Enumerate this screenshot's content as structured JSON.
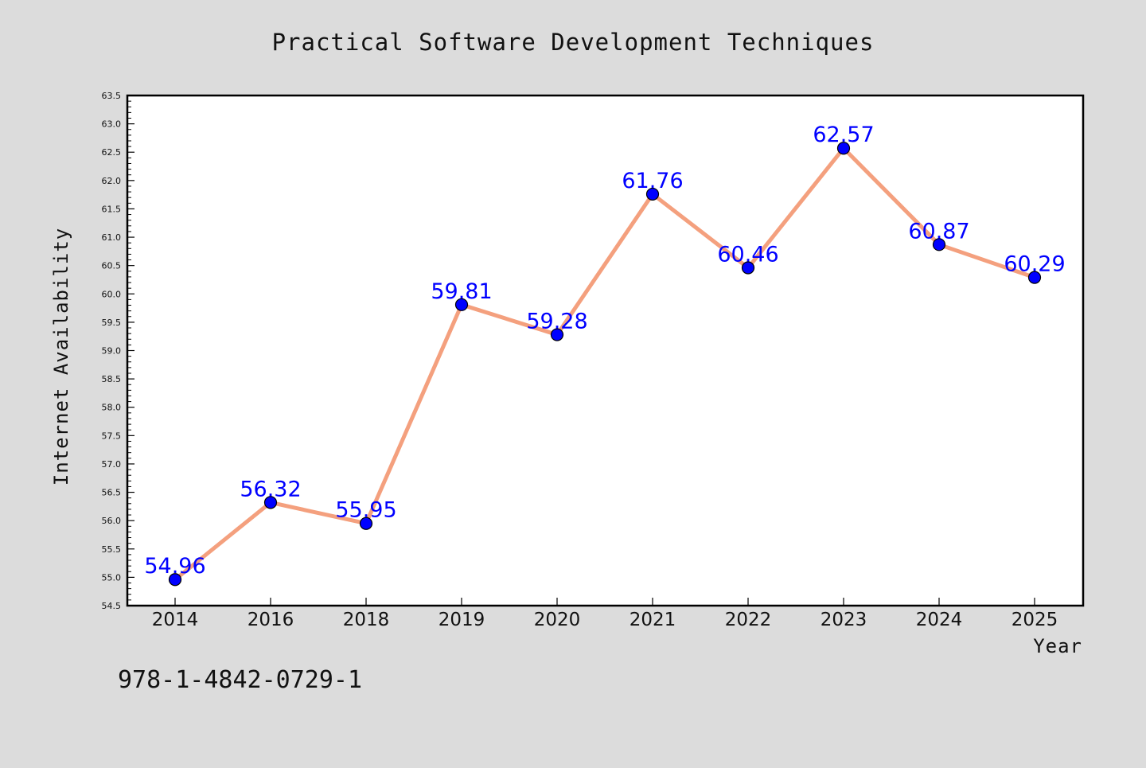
{
  "chart_data": {
    "type": "line",
    "title": "Practical Software Development Techniques",
    "xlabel": "Year",
    "ylabel": "Internet Availability",
    "categories": [
      "2014",
      "2016",
      "2018",
      "2019",
      "2020",
      "2021",
      "2022",
      "2023",
      "2024",
      "2025"
    ],
    "series": [
      {
        "values": [
          54.96,
          56.32,
          55.95,
          59.81,
          59.28,
          61.76,
          60.46,
          62.57,
          60.87,
          60.29
        ]
      }
    ],
    "data_labels": [
      "54.96",
      "56.32",
      "55.95",
      "59.81",
      "59.28",
      "61.76",
      "60.46",
      "62.57",
      "60.87",
      "60.29"
    ],
    "ylim": [
      54.5,
      63.5
    ],
    "yticks": [
      "54.5",
      "55.0",
      "55.5",
      "56.0",
      "56.5",
      "57.0",
      "57.5",
      "58.0",
      "58.5",
      "59.0",
      "59.5",
      "60.0",
      "60.5",
      "61.0",
      "61.5",
      "62.0",
      "62.5",
      "63.0",
      "63.5"
    ],
    "grid": false,
    "legend": "none",
    "colors": {
      "background": "#dcdcdc",
      "plot_background": "#ffffff",
      "line": "#f4a07e",
      "marker": "#0000ff",
      "label": "#0000ff",
      "frame": "#000000"
    }
  },
  "footnote": "978-1-4842-0729-1"
}
